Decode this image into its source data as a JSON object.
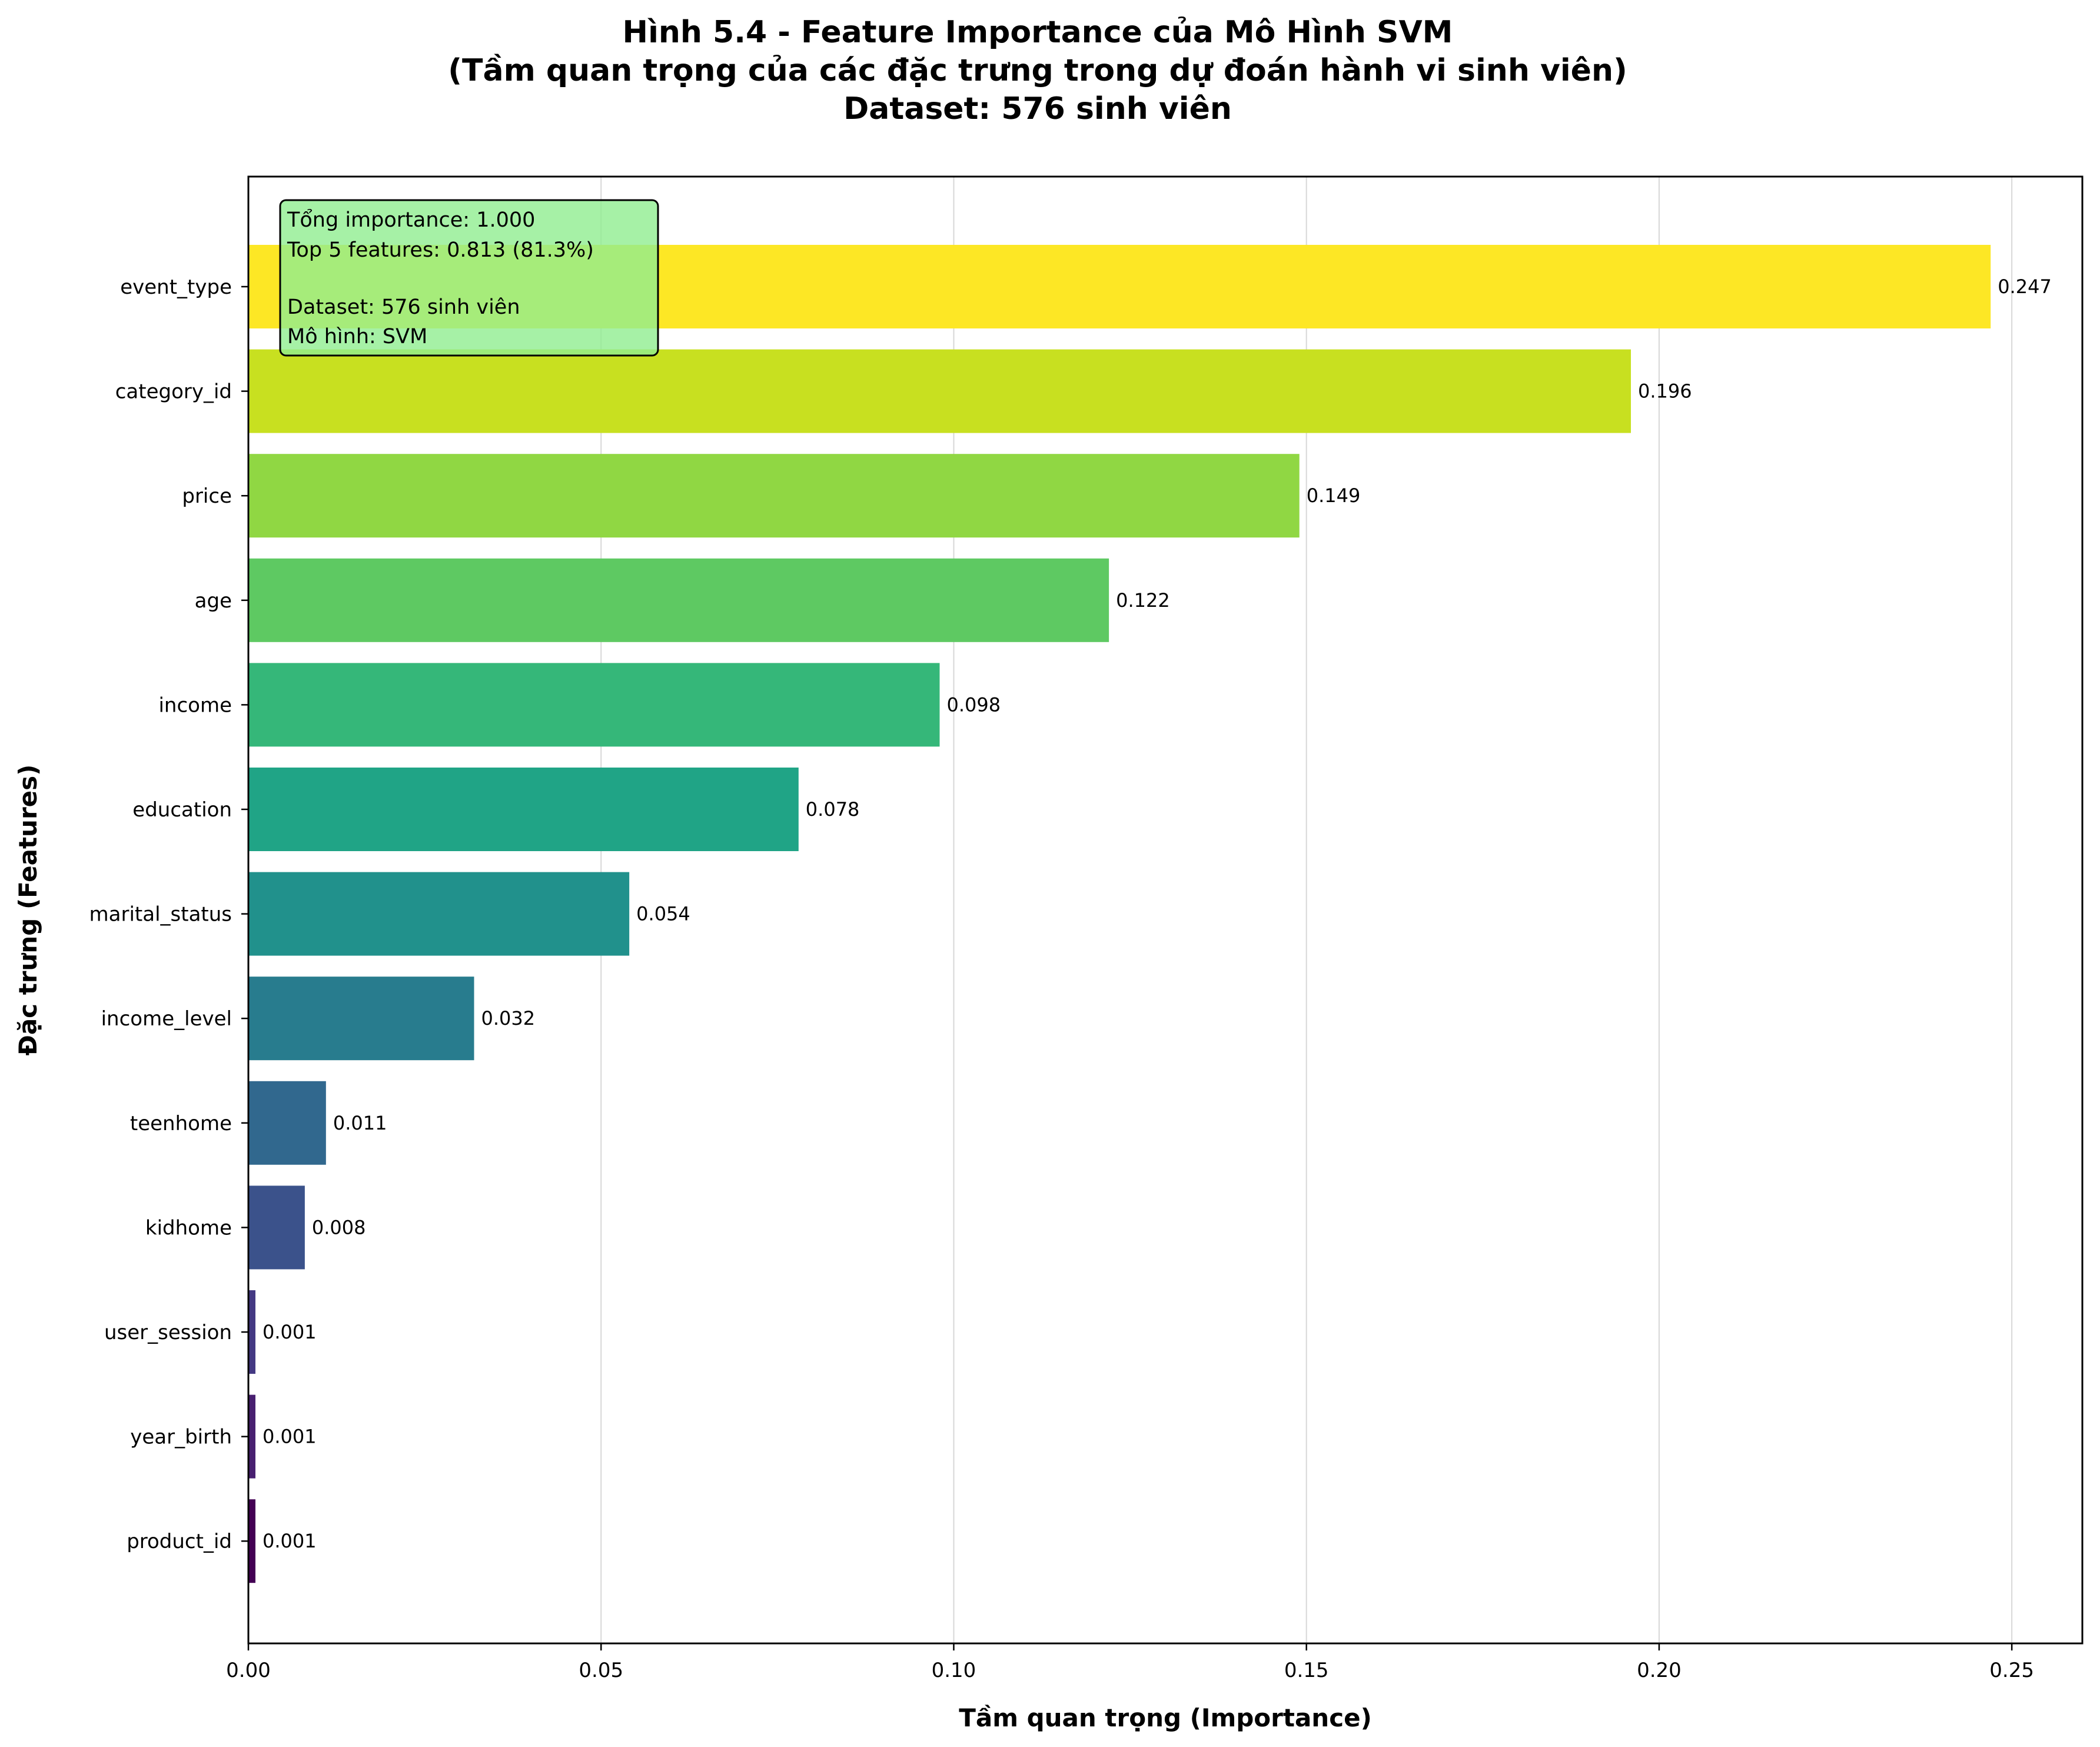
{
  "chart_data": {
    "type": "bar",
    "orientation": "horizontal",
    "title_lines": [
      "Hình 5.4 - Feature Importance của Mô Hình SVM",
      "(Tầm quan trọng của các đặc trưng trong dự đoán hành vi sinh viên)",
      "Dataset: 576 sinh viên"
    ],
    "xlabel": "Tầm quan trọng (Importance)",
    "ylabel": "Đặc trưng (Features)",
    "xlim": [
      0,
      0.26
    ],
    "xticks": [
      0.0,
      0.05,
      0.1,
      0.15,
      0.2,
      0.25
    ],
    "xtick_labels": [
      "0.00",
      "0.05",
      "0.10",
      "0.15",
      "0.20",
      "0.25"
    ],
    "grid": "vertical",
    "categories": [
      "event_type",
      "category_id",
      "price",
      "age",
      "income",
      "education",
      "marital_status",
      "income_level",
      "teenhome",
      "kidhome",
      "user_session",
      "year_birth",
      "product_id"
    ],
    "values": [
      0.247,
      0.196,
      0.149,
      0.122,
      0.098,
      0.078,
      0.054,
      0.032,
      0.011,
      0.008,
      0.001,
      0.001,
      0.001
    ],
    "value_labels": [
      "0.247",
      "0.196",
      "0.149",
      "0.122",
      "0.098",
      "0.078",
      "0.054",
      "0.032",
      "0.011",
      "0.008",
      "0.001",
      "0.001",
      "0.001"
    ],
    "colors": [
      "#fde725",
      "#c8e020",
      "#90d743",
      "#5ec962",
      "#35b779",
      "#20a486",
      "#21918c",
      "#287c8e",
      "#31688e",
      "#3b528b",
      "#443983",
      "#481f70",
      "#440154"
    ],
    "info_box": {
      "position": "top-left",
      "lines": [
        "Tổng importance: 1.000",
        "Top 5 features: 0.813 (81.3%)",
        "",
        "Dataset: 576 sinh viên",
        "Mô hình: SVM"
      ],
      "background": "#90ee90",
      "border": "#000000"
    }
  }
}
